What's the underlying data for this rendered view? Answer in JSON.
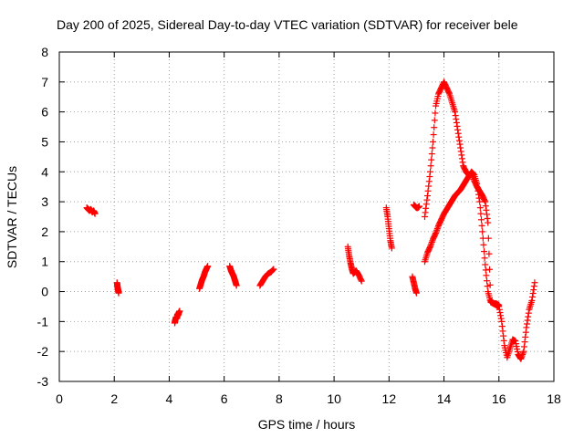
{
  "chart_data": {
    "type": "scatter",
    "title": "Day 200 of 2025, Sidereal Day-to-day VTEC variation (SDTVAR) for receiver bele",
    "xlabel": "GPS time / hours",
    "ylabel": "SDTVAR / TECUs",
    "xlim": [
      0,
      18
    ],
    "ylim": [
      -3,
      8
    ],
    "xticks": [
      "0",
      "2",
      "4",
      "6",
      "8",
      "10",
      "12",
      "14",
      "16",
      "18"
    ],
    "yticks": [
      "-3",
      "-2",
      "-1",
      "0",
      "1",
      "2",
      "3",
      "4",
      "5",
      "6",
      "7",
      "8"
    ],
    "grid": true,
    "marker": "+",
    "color": "#ff0000",
    "series": [
      {
        "name": "SDTVAR",
        "segments": [
          {
            "x": [
              1.0,
              1.05,
              1.1,
              1.15,
              1.2,
              1.25,
              1.3
            ],
            "y": [
              2.8,
              2.75,
              2.7,
              2.75,
              2.65,
              2.7,
              2.6
            ]
          },
          {
            "x": [
              2.1,
              2.12,
              2.14,
              2.16
            ],
            "y": [
              0.3,
              0.15,
              0.05,
              -0.05
            ]
          },
          {
            "x": [
              4.2,
              4.22,
              4.25,
              4.28,
              4.3,
              4.32,
              4.35,
              4.38
            ],
            "y": [
              -1.05,
              -0.95,
              -0.85,
              -0.9,
              -0.75,
              -0.8,
              -0.7,
              -0.65
            ]
          },
          {
            "x": [
              5.1,
              5.15,
              5.2,
              5.25,
              5.3,
              5.35,
              5.4
            ],
            "y": [
              0.1,
              0.25,
              0.4,
              0.5,
              0.65,
              0.75,
              0.85
            ]
          },
          {
            "x": [
              6.2,
              6.25,
              6.3,
              6.35,
              6.4,
              6.45
            ],
            "y": [
              0.85,
              0.7,
              0.6,
              0.5,
              0.35,
              0.2
            ]
          },
          {
            "x": [
              7.3,
              7.4,
              7.5,
              7.6,
              7.7,
              7.8
            ],
            "y": [
              0.2,
              0.35,
              0.5,
              0.6,
              0.65,
              0.75
            ]
          },
          {
            "x": [
              10.5,
              10.55,
              10.6,
              10.65,
              10.7,
              10.8,
              10.9,
              11.0
            ],
            "y": [
              1.5,
              1.2,
              0.95,
              0.75,
              0.6,
              0.7,
              0.55,
              0.35
            ]
          },
          {
            "x": [
              11.9,
              11.95,
              12.0,
              12.05,
              12.1
            ],
            "y": [
              2.8,
              2.5,
              2.1,
              1.7,
              1.45
            ]
          },
          {
            "x": [
              12.9,
              12.95,
              13.0,
              13.05,
              13.1
            ],
            "y": [
              2.9,
              2.85,
              2.8,
              2.8,
              2.85
            ]
          },
          {
            "x": [
              12.85,
              12.9,
              12.95,
              13.0
            ],
            "y": [
              0.5,
              0.3,
              0.1,
              -0.05
            ]
          },
          {
            "x": [
              13.3,
              13.4,
              13.5,
              13.6,
              13.7,
              13.8,
              13.9,
              14.0,
              14.1,
              14.2,
              14.3,
              14.4,
              14.5,
              14.6,
              14.7,
              14.8,
              14.9,
              15.0,
              15.1,
              15.2,
              15.3,
              15.4,
              15.5,
              15.6,
              15.7,
              15.8,
              15.9,
              16.0,
              16.1,
              16.2,
              16.3,
              16.4,
              16.5,
              16.6,
              16.7,
              16.8,
              16.9,
              17.0,
              17.1,
              17.2,
              17.3
            ],
            "y": [
              1.0,
              1.3,
              1.5,
              1.75,
              1.95,
              2.2,
              2.4,
              2.6,
              2.75,
              2.9,
              3.05,
              3.2,
              3.3,
              3.4,
              3.55,
              3.7,
              3.85,
              4.0,
              3.9,
              3.6,
              3.0,
              2.0,
              0.9,
              0.0,
              -0.35,
              -0.4,
              -0.45,
              -0.5,
              -1.0,
              -1.8,
              -2.2,
              -1.9,
              -1.6,
              -1.65,
              -2.1,
              -2.25,
              -2.0,
              -1.2,
              -0.6,
              -0.3,
              0.3
            ]
          },
          {
            "x": [
              13.3,
              13.4,
              13.5,
              13.6,
              13.7,
              13.8,
              13.9,
              14.0,
              14.1,
              14.2,
              14.3,
              14.4,
              14.5,
              14.6,
              14.7,
              14.8,
              14.9,
              15.0,
              15.1,
              15.2,
              15.3,
              15.4,
              15.5,
              15.6,
              15.7,
              15.8,
              15.9,
              16.0
            ],
            "y": [
              2.5,
              3.2,
              4.0,
              5.0,
              6.2,
              6.6,
              6.8,
              7.0,
              6.8,
              6.6,
              6.3,
              6.0,
              5.4,
              4.8,
              4.2,
              4.0,
              3.9,
              3.95,
              3.7,
              3.5,
              3.35,
              3.2,
              3.0,
              2.3,
              -0.3,
              -0.4,
              -0.4,
              -0.45
            ]
          }
        ]
      }
    ]
  }
}
